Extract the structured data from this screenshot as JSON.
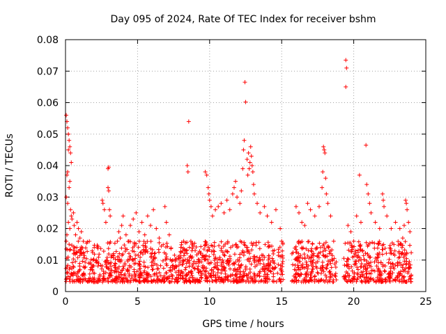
{
  "chart_data": {
    "type": "scatter",
    "title": "Day 095 of 2024, Rate Of TEC Index for receiver bshm",
    "xlabel": "GPS time / hours",
    "ylabel": "ROTI / TECUs",
    "xlim": [
      0,
      25
    ],
    "ylim": [
      0,
      0.08
    ],
    "xticks": [
      0,
      5,
      10,
      15,
      20,
      25
    ],
    "xtick_labels": [
      "0",
      "5",
      "10",
      "15",
      "20",
      "25"
    ],
    "yticks": [
      0,
      0.01,
      0.02,
      0.03,
      0.04,
      0.05,
      0.06,
      0.07,
      0.08
    ],
    "ytick_labels": [
      "0",
      "0.01",
      "0.02",
      "0.03",
      "0.04",
      "0.05",
      "0.06",
      "0.07",
      "0.08"
    ],
    "grid": true,
    "marker": "+",
    "color": "#ff0000",
    "series": [
      {
        "name": "ROTI",
        "points": [
          [
            0.05,
            0.056
          ],
          [
            0.1,
            0.054
          ],
          [
            0.15,
            0.052
          ],
          [
            0.2,
            0.05
          ],
          [
            0.25,
            0.048
          ],
          [
            0.3,
            0.046
          ],
          [
            0.35,
            0.044
          ],
          [
            0.4,
            0.041
          ],
          [
            0.2,
            0.045
          ],
          [
            0.15,
            0.038
          ],
          [
            0.1,
            0.037
          ],
          [
            0.3,
            0.035
          ],
          [
            0.25,
            0.033
          ],
          [
            0.05,
            0.03
          ],
          [
            0.15,
            0.028
          ],
          [
            0.35,
            0.026
          ],
          [
            0.4,
            0.024
          ],
          [
            0.2,
            0.022
          ],
          [
            0.3,
            0.02
          ],
          [
            0.1,
            0.018
          ],
          [
            0.05,
            0.016
          ],
          [
            0.25,
            0.015
          ],
          [
            0.45,
            0.023
          ],
          [
            0.55,
            0.025
          ],
          [
            0.6,
            0.021
          ],
          [
            0.7,
            0.018
          ],
          [
            0.8,
            0.022
          ],
          [
            0.9,
            0.02
          ],
          [
            1.0,
            0.017
          ],
          [
            1.1,
            0.019
          ],
          [
            2.55,
            0.029
          ],
          [
            2.6,
            0.028
          ],
          [
            2.7,
            0.026
          ],
          [
            2.8,
            0.022
          ],
          [
            2.95,
            0.033
          ],
          [
            3.0,
            0.032
          ],
          [
            2.95,
            0.039
          ],
          [
            3.0,
            0.0395
          ],
          [
            3.05,
            0.026
          ],
          [
            3.1,
            0.024
          ],
          [
            3.6,
            0.016
          ],
          [
            3.7,
            0.019
          ],
          [
            3.8,
            0.017
          ],
          [
            3.9,
            0.021
          ],
          [
            4.0,
            0.024
          ],
          [
            4.2,
            0.018
          ],
          [
            4.5,
            0.021
          ],
          [
            4.7,
            0.023
          ],
          [
            4.9,
            0.025
          ],
          [
            5.1,
            0.019
          ],
          [
            5.3,
            0.022
          ],
          [
            5.5,
            0.018
          ],
          [
            5.7,
            0.024
          ],
          [
            5.9,
            0.021
          ],
          [
            6.1,
            0.026
          ],
          [
            6.3,
            0.02
          ],
          [
            6.5,
            0.017
          ],
          [
            6.9,
            0.027
          ],
          [
            7.0,
            0.022
          ],
          [
            7.2,
            0.018
          ],
          [
            8.0,
            0.014
          ],
          [
            8.2,
            0.016
          ],
          [
            8.4,
            0.013
          ],
          [
            8.45,
            0.04
          ],
          [
            8.5,
            0.038
          ],
          [
            8.55,
            0.054
          ],
          [
            8.6,
            0.014
          ],
          [
            8.7,
            0.016
          ],
          [
            8.8,
            0.011
          ],
          [
            8.9,
            0.009
          ],
          [
            9.7,
            0.038
          ],
          [
            9.8,
            0.037
          ],
          [
            9.9,
            0.033
          ],
          [
            9.95,
            0.031
          ],
          [
            10.0,
            0.029
          ],
          [
            10.1,
            0.027
          ],
          [
            10.2,
            0.024
          ],
          [
            10.4,
            0.026
          ],
          [
            10.6,
            0.027
          ],
          [
            10.8,
            0.028
          ],
          [
            11.0,
            0.025
          ],
          [
            11.2,
            0.029
          ],
          [
            11.4,
            0.026
          ],
          [
            11.6,
            0.031
          ],
          [
            11.7,
            0.033
          ],
          [
            11.8,
            0.035
          ],
          [
            11.9,
            0.03
          ],
          [
            12.1,
            0.028
          ],
          [
            12.2,
            0.032
          ],
          [
            12.3,
            0.039
          ],
          [
            12.35,
            0.045
          ],
          [
            12.4,
            0.048
          ],
          [
            12.45,
            0.0665
          ],
          [
            12.5,
            0.0602
          ],
          [
            12.6,
            0.042
          ],
          [
            12.65,
            0.037
          ],
          [
            12.7,
            0.044
          ],
          [
            12.75,
            0.039
          ],
          [
            12.8,
            0.041
          ],
          [
            12.85,
            0.046
          ],
          [
            12.9,
            0.043
          ],
          [
            12.95,
            0.04
          ],
          [
            13.0,
            0.038
          ],
          [
            13.05,
            0.034
          ],
          [
            13.1,
            0.031
          ],
          [
            13.3,
            0.028
          ],
          [
            13.5,
            0.025
          ],
          [
            13.8,
            0.027
          ],
          [
            14.0,
            0.024
          ],
          [
            14.3,
            0.022
          ],
          [
            14.6,
            0.026
          ],
          [
            14.9,
            0.02
          ],
          [
            15.0,
            0.016
          ],
          [
            16.0,
            0.027
          ],
          [
            16.2,
            0.025
          ],
          [
            16.4,
            0.022
          ],
          [
            16.6,
            0.021
          ],
          [
            16.8,
            0.028
          ],
          [
            17.0,
            0.026
          ],
          [
            17.3,
            0.024
          ],
          [
            17.6,
            0.027
          ],
          [
            17.8,
            0.033
          ],
          [
            17.85,
            0.038
          ],
          [
            17.9,
            0.046
          ],
          [
            17.95,
            0.045
          ],
          [
            18.0,
            0.044
          ],
          [
            18.05,
            0.036
          ],
          [
            18.1,
            0.031
          ],
          [
            18.2,
            0.028
          ],
          [
            18.4,
            0.024
          ],
          [
            19.45,
            0.0735
          ],
          [
            19.5,
            0.071
          ],
          [
            19.45,
            0.065
          ],
          [
            19.6,
            0.021
          ],
          [
            19.8,
            0.019
          ],
          [
            20.0,
            0.016
          ],
          [
            20.2,
            0.024
          ],
          [
            20.4,
            0.037
          ],
          [
            20.5,
            0.022
          ],
          [
            20.85,
            0.0465
          ],
          [
            20.9,
            0.034
          ],
          [
            21.0,
            0.031
          ],
          [
            21.1,
            0.028
          ],
          [
            21.2,
            0.025
          ],
          [
            21.5,
            0.022
          ],
          [
            21.8,
            0.02
          ],
          [
            22.0,
            0.031
          ],
          [
            22.05,
            0.029
          ],
          [
            22.1,
            0.027
          ],
          [
            22.3,
            0.024
          ],
          [
            22.6,
            0.02
          ],
          [
            22.9,
            0.022
          ],
          [
            23.2,
            0.02
          ],
          [
            23.4,
            0.017
          ],
          [
            23.5,
            0.021
          ],
          [
            23.6,
            0.029
          ],
          [
            23.65,
            0.028
          ],
          [
            23.7,
            0.026
          ],
          [
            23.8,
            0.022
          ],
          [
            23.9,
            0.019
          ]
        ],
        "dense_bands": [
          {
            "x_start": 0.0,
            "x_end": 15.1,
            "y_min": 0.003,
            "y_max": 0.016
          },
          {
            "x_start": 15.7,
            "x_end": 18.8,
            "y_min": 0.003,
            "y_max": 0.016
          },
          {
            "x_start": 19.3,
            "x_end": 24.0,
            "y_min": 0.003,
            "y_max": 0.016
          }
        ]
      }
    ]
  }
}
